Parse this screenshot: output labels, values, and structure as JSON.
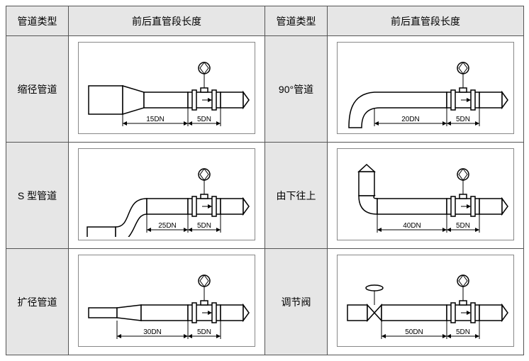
{
  "headers": {
    "col1": "管道类型",
    "col2": "前后直管段长度",
    "col3": "管道类型",
    "col4": "前后直管段长度"
  },
  "rows": [
    {
      "left_type": "缩径管道",
      "left_diagram": {
        "shape": "reducer",
        "upstream": "15DN",
        "downstream": "5DN"
      },
      "right_type": "90°管道",
      "right_diagram": {
        "shape": "elbow90",
        "upstream": "20DN",
        "downstream": "5DN"
      }
    },
    {
      "left_type": "S 型管道",
      "left_diagram": {
        "shape": "s-bend",
        "upstream": "25DN",
        "downstream": "5DN"
      },
      "right_type": "由下往上",
      "right_diagram": {
        "shape": "up-elbow",
        "upstream": "40DN",
        "downstream": "5DN"
      }
    },
    {
      "left_type": "扩径管道",
      "left_diagram": {
        "shape": "expander",
        "upstream": "30DN",
        "downstream": "5DN"
      },
      "right_type": "调节阀",
      "right_diagram": {
        "shape": "valve",
        "upstream": "50DN",
        "downstream": "5DN"
      }
    }
  ]
}
